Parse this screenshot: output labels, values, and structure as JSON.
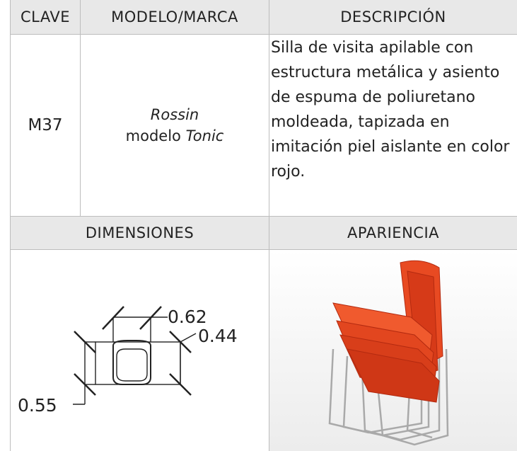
{
  "table": {
    "header": [
      "CLAVE",
      "MODELO/MARCA",
      "DESCRIPCIÓN"
    ],
    "row": {
      "clave": "M37",
      "brand": "Rossin",
      "model_prefix": "modelo",
      "model_name": "Tonic",
      "description": "Silla de visita apilable con estructura metálica y asiento de espuma de poliuretano moldeada, tapizada en imitación piel aislante en color rojo."
    },
    "header2": [
      "DIMENSIONES",
      "APARIENCIA"
    ],
    "dimensions": {
      "width": 0.62,
      "depth": 0.44,
      "height": 0.55
    }
  }
}
